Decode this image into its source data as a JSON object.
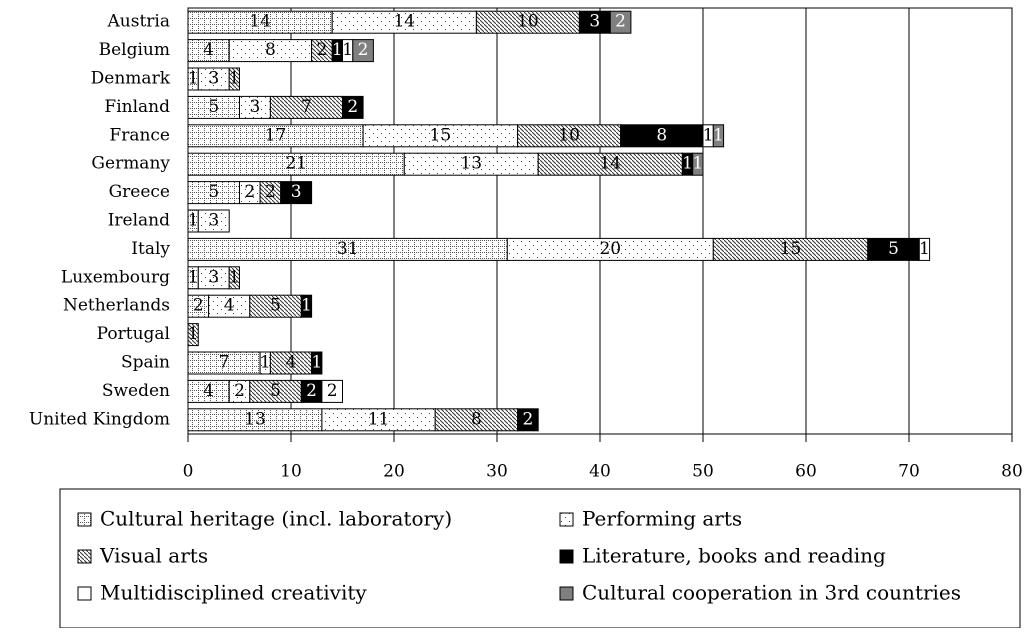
{
  "chart_data": {
    "type": "stacked_barh",
    "categories": [
      "Austria",
      "Belgium",
      "Denmark",
      "Finland",
      "France",
      "Germany",
      "Greece",
      "Ireland",
      "Italy",
      "Luxembourg",
      "Netherlands",
      "Portugal",
      "Spain",
      "Sweden",
      "United Kingdom"
    ],
    "series": [
      {
        "name": "Cultural heritage (incl. laboratory)",
        "color": "#ffffff",
        "values": [
          14,
          4,
          1,
          5,
          17,
          21,
          5,
          1,
          31,
          1,
          2,
          null,
          7,
          4,
          13
        ]
      },
      {
        "name": "Performing arts",
        "color": "#ffffff",
        "values": [
          14,
          8,
          3,
          3,
          15,
          13,
          2,
          3,
          20,
          3,
          4,
          null,
          1,
          2,
          11
        ]
      },
      {
        "name": "Visual arts",
        "color": "#ffffff",
        "values": [
          10,
          2,
          1,
          7,
          10,
          14,
          2,
          null,
          15,
          1,
          5,
          1,
          4,
          5,
          8
        ]
      },
      {
        "name": "Literature, books and reading",
        "color": "#000000",
        "values": [
          3,
          1,
          null,
          2,
          8,
          1,
          3,
          null,
          5,
          null,
          1,
          null,
          1,
          2,
          2
        ]
      },
      {
        "name": "Multidisciplined creativity",
        "color": "#ffffff",
        "values": [
          null,
          1,
          null,
          null,
          1,
          null,
          null,
          null,
          1,
          null,
          null,
          null,
          null,
          2,
          null
        ]
      },
      {
        "name": "Cultural cooperation in 3rd countries",
        "color": "#808080",
        "values": [
          2,
          2,
          null,
          null,
          1,
          1,
          null,
          null,
          null,
          null,
          null,
          null,
          null,
          null,
          null
        ]
      }
    ],
    "xlim": [
      0,
      80
    ],
    "xticks": [
      0,
      10,
      20,
      30,
      40,
      50,
      60,
      70,
      80
    ],
    "grid": true
  }
}
